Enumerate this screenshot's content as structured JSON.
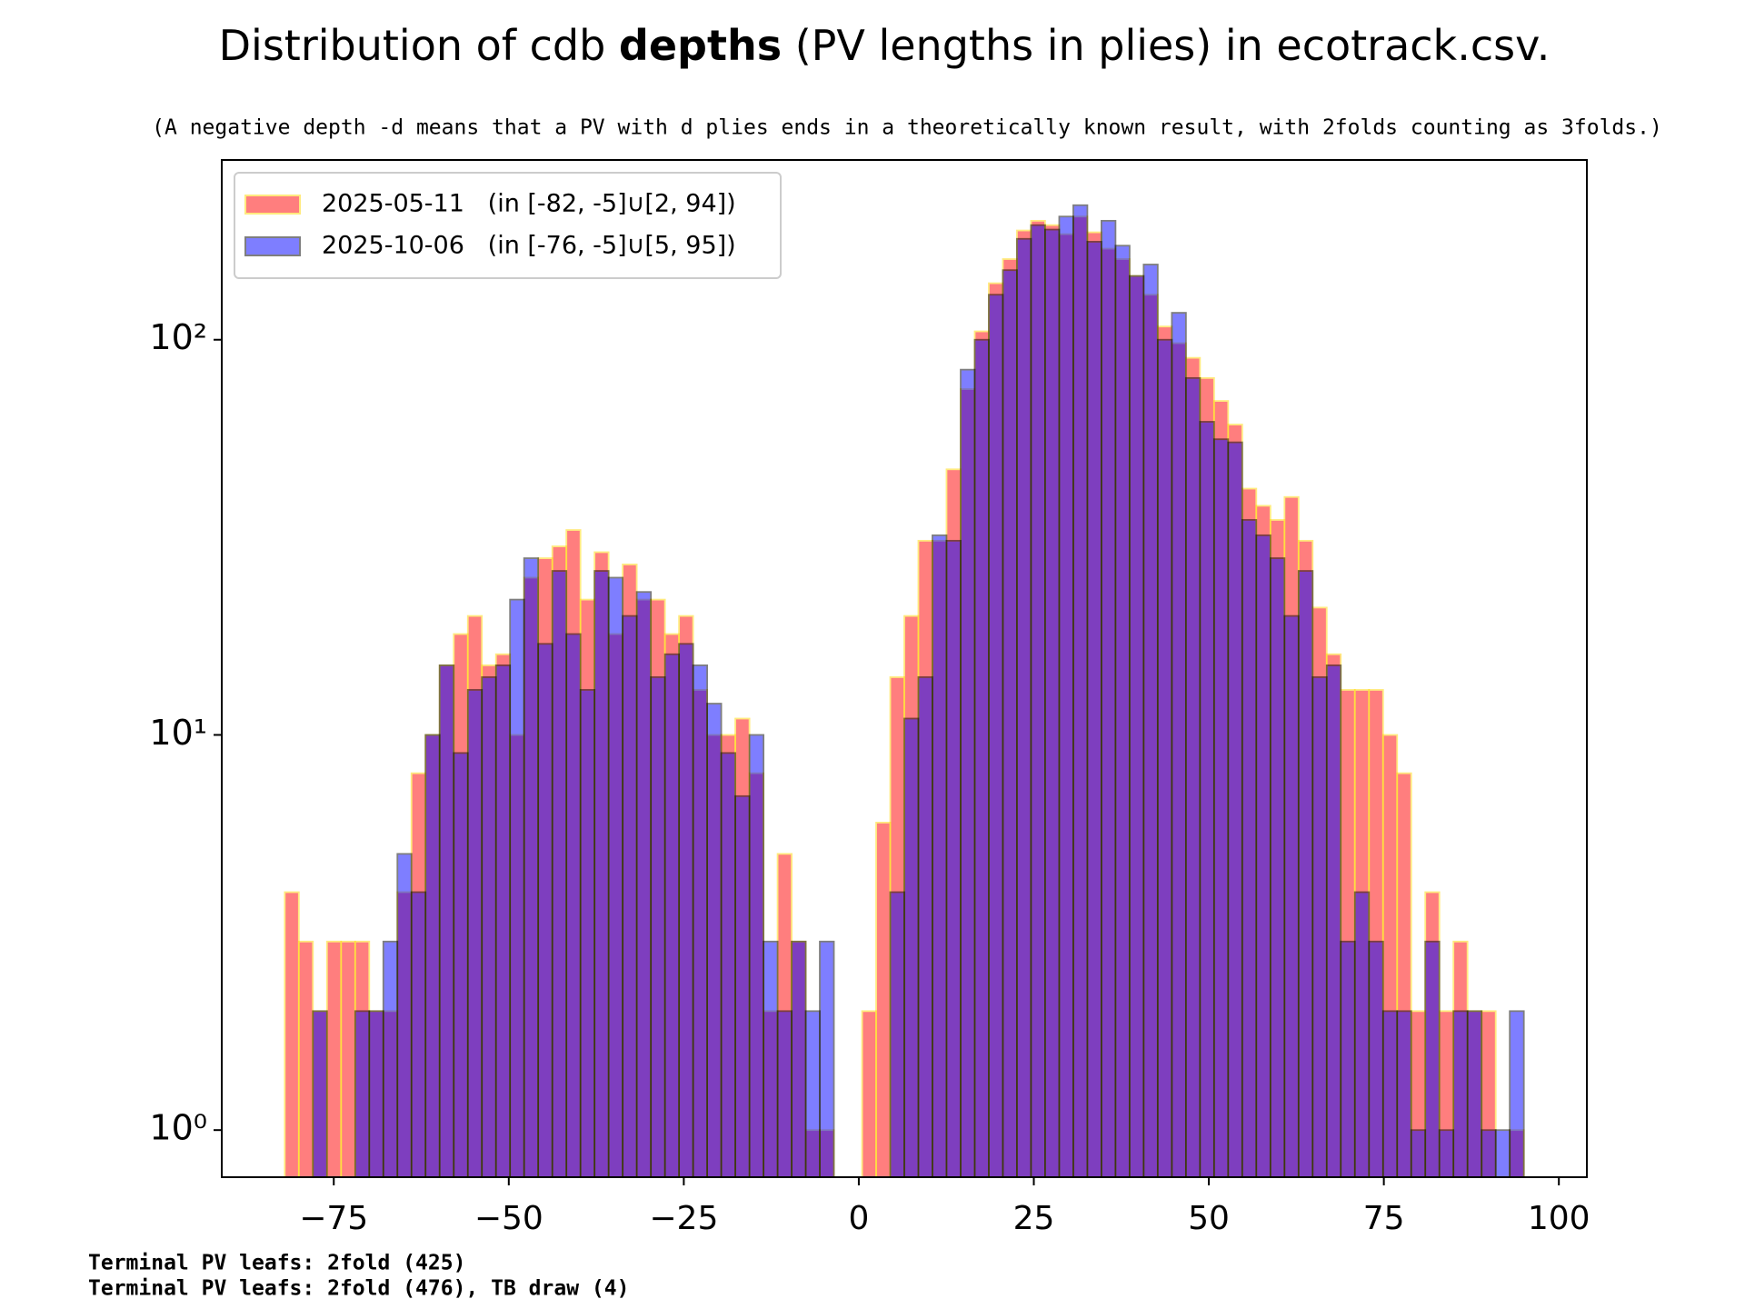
{
  "chart_data": {
    "type": "histogram",
    "title": {
      "before": "Distribution of cdb ",
      "bold": "depths",
      "after": " (PV lengths in plies) in ecotrack.csv."
    },
    "subtitle": "(A negative depth -d means that a PV with d plies ends in a theoretically known result, with 2folds counting as 3folds.)",
    "bins": [
      -82,
      -79.99,
      -77.98,
      -75.97,
      -73.95,
      -71.94,
      -69.93,
      -67.92,
      -65.91,
      -63.9,
      -61.89,
      -59.88,
      -57.86,
      -55.85,
      -53.84,
      -51.83,
      -49.82,
      -47.81,
      -45.8,
      -43.78,
      -41.77,
      -39.76,
      -37.75,
      -35.74,
      -33.73,
      -31.72,
      -29.7,
      -27.69,
      -25.68,
      -23.67,
      -21.66,
      -19.65,
      -17.64,
      -15.62,
      -13.61,
      -11.6,
      -9.59,
      -7.58,
      -5.57,
      -3.56,
      -1.55,
      0.47,
      2.48,
      4.49,
      6.5,
      8.51,
      10.52,
      12.53,
      14.55,
      16.56,
      18.57,
      20.58,
      22.59,
      24.6,
      26.61,
      28.63,
      30.64,
      32.65,
      34.66,
      36.67,
      38.68,
      40.69,
      42.7,
      44.72,
      46.73,
      48.74,
      50.75,
      52.76,
      54.77,
      56.78,
      58.8,
      60.81,
      62.82,
      64.83,
      66.84,
      68.85,
      70.86,
      72.88,
      74.89,
      76.9,
      78.91,
      80.92,
      82.93,
      84.94,
      86.95,
      88.97,
      90.98,
      92.99,
      95
    ],
    "series": [
      {
        "name": "2025-05-11   (in [-82, -5]∪[2, 94])",
        "color": "#ff0000",
        "edgecolor": "#ffd700",
        "values": [
          4,
          3,
          2,
          3,
          3,
          3,
          2,
          2,
          4,
          8,
          10,
          15,
          18,
          20,
          15,
          16,
          10,
          25,
          28,
          30,
          33,
          22,
          29,
          18,
          27,
          22,
          22,
          18,
          20,
          13,
          10,
          10,
          11,
          8,
          2,
          5,
          3,
          1,
          1,
          0,
          0,
          2,
          6,
          14,
          20,
          31,
          31,
          47,
          75,
          105,
          139,
          160,
          189,
          200,
          195,
          185,
          205,
          187,
          170,
          160,
          145,
          130,
          108,
          98,
          90,
          80,
          70,
          61,
          42,
          38,
          35,
          40,
          31,
          21,
          16,
          13,
          13,
          13,
          10,
          8,
          2,
          4,
          2,
          3,
          2,
          2,
          0,
          1
        ]
      },
      {
        "name": "2025-10-06   (in [-76, -5]∪[5, 95])",
        "color": "#0000ff",
        "edgecolor": "#000000",
        "values": [
          0,
          0,
          2,
          0,
          0,
          2,
          2,
          3,
          5,
          4,
          10,
          15,
          9,
          13,
          14,
          15,
          22,
          28,
          17,
          26,
          18,
          13,
          26,
          25,
          20,
          23,
          14,
          16,
          17,
          15,
          12,
          9,
          7,
          10,
          3,
          2,
          3,
          2,
          3,
          0,
          0,
          0,
          0,
          4,
          11,
          14,
          32,
          31,
          84,
          100,
          130,
          150,
          180,
          195,
          190,
          205,
          219,
          177,
          200,
          173,
          145,
          155,
          100,
          117,
          80,
          62,
          56,
          55,
          35,
          32,
          28,
          20,
          26,
          14,
          15,
          3,
          4,
          3,
          2,
          2,
          1,
          3,
          1,
          2,
          2,
          1,
          1,
          2
        ]
      }
    ],
    "alpha": 0.5,
    "log_y": true,
    "xlim": [
      -91,
      104
    ],
    "xticks": [
      {
        "value": -75,
        "label": "−75"
      },
      {
        "value": -50,
        "label": "−50"
      },
      {
        "value": -25,
        "label": "−25"
      },
      0,
      25,
      50,
      75,
      100
    ],
    "ylim": [
      0.76,
      285
    ],
    "yticks": [
      {
        "value": 1,
        "label": "10⁰"
      },
      {
        "value": 10,
        "label": "10¹"
      },
      {
        "value": 100,
        "label": "10²"
      }
    ],
    "legend": "upper left",
    "annotations": [
      {
        "text": "Terminal PV leafs: 2fold (425)",
        "color": "#0000ff"
      },
      {
        "text": "Terminal PV leafs: 2fold (476), TB draw (4)",
        "color": "#ff0000"
      }
    ]
  }
}
